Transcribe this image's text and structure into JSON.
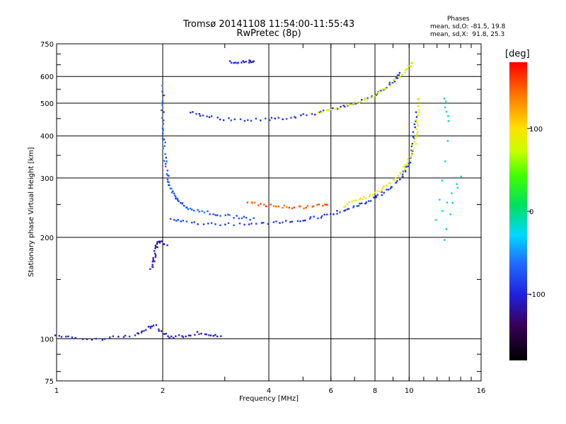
{
  "title": {
    "line1": "Tromsø 20141108 11:54:00-11:55:43",
    "line2": "RwPretec (8p)"
  },
  "phases": {
    "label": "Phases",
    "o_line": "mean, sd,O: -81.5, 19.8",
    "x_line": "mean, sd,X:  91.8, 25.3"
  },
  "colorbar": {
    "unit": "[deg]",
    "ticks": [
      {
        "value": 100,
        "label": "100"
      },
      {
        "value": 0,
        "label": "0"
      },
      {
        "value": -100,
        "label": "-100"
      }
    ],
    "range": [
      -180,
      180
    ]
  },
  "chart_data": {
    "type": "scatter",
    "title": "Tromsø 20141108 11:54:00-11:55:43",
    "subtitle": "RwPretec (8p)",
    "xlabel": "Frequency [MHz]",
    "ylabel": "Stationary phase Virtual Height [km]",
    "xscale": "log",
    "yscale": "log",
    "xlim": [
      1,
      16
    ],
    "ylim": [
      75,
      750
    ],
    "xticks": [
      1,
      2,
      4,
      6,
      8,
      10,
      16
    ],
    "xtick_labels": [
      "1",
      "2",
      "4",
      "6",
      "8",
      "10",
      "16"
    ],
    "yticks": [
      75,
      100,
      200,
      300,
      400,
      500,
      600,
      750
    ],
    "ytick_labels": [
      "75",
      "100",
      "200",
      "300",
      "400",
      "500",
      "600",
      "750"
    ],
    "grid": true,
    "color_by": "phase (deg)",
    "series": [
      {
        "points": [
          [
            2.0,
            560
          ],
          [
            2.0,
            480
          ],
          [
            2.0,
            420
          ],
          [
            2.02,
            380
          ],
          [
            2.03,
            340
          ],
          [
            2.05,
            310
          ],
          [
            2.08,
            290
          ],
          [
            2.12,
            275
          ],
          [
            2.18,
            262
          ],
          [
            2.25,
            252
          ],
          [
            2.35,
            245
          ],
          [
            2.5,
            240
          ],
          [
            2.7,
            236
          ],
          [
            3.0,
            232
          ],
          [
            3.3,
            229
          ],
          [
            3.6,
            227
          ]
        ],
        "phase": -70
      },
      {
        "points": [
          [
            2.1,
            225
          ],
          [
            2.3,
            222
          ],
          [
            2.6,
            220
          ],
          [
            3.0,
            219
          ],
          [
            3.5,
            219
          ],
          [
            4.0,
            220
          ],
          [
            4.5,
            222
          ],
          [
            5.0,
            225
          ],
          [
            5.5,
            229
          ],
          [
            6.0,
            234
          ],
          [
            6.5,
            240
          ],
          [
            7.0,
            247
          ],
          [
            7.5,
            254
          ],
          [
            8.0,
            262
          ],
          [
            8.5,
            272
          ],
          [
            9.0,
            285
          ],
          [
            9.5,
            302
          ],
          [
            9.8,
            318
          ],
          [
            10.0,
            335
          ],
          [
            10.2,
            365
          ],
          [
            10.35,
            410
          ],
          [
            10.45,
            470
          ]
        ],
        "phase": -85
      },
      {
        "points": [
          [
            6.5,
            248
          ],
          [
            7.0,
            255
          ],
          [
            7.5,
            262
          ],
          [
            8.0,
            270
          ],
          [
            8.5,
            282
          ],
          [
            9.0,
            295
          ],
          [
            9.5,
            312
          ],
          [
            9.9,
            330
          ],
          [
            10.2,
            355
          ],
          [
            10.4,
            385
          ],
          [
            10.5,
            420
          ],
          [
            10.6,
            470
          ],
          [
            10.7,
            520
          ]
        ],
        "phase": 90
      },
      {
        "points": [
          [
            3.5,
            255
          ],
          [
            3.8,
            250
          ],
          [
            4.2,
            247
          ],
          [
            4.6,
            246
          ],
          [
            5.0,
            246
          ],
          [
            5.5,
            249
          ],
          [
            5.9,
            252
          ]
        ],
        "phase": 150
      },
      {
        "points": [
          [
            2.4,
            470
          ],
          [
            2.6,
            458
          ],
          [
            2.9,
            450
          ],
          [
            3.3,
            446
          ],
          [
            3.8,
            446
          ],
          [
            4.3,
            450
          ],
          [
            4.8,
            456
          ],
          [
            5.4,
            465
          ],
          [
            6.0,
            476
          ],
          [
            6.6,
            490
          ],
          [
            7.2,
            505
          ],
          [
            7.8,
            522
          ],
          [
            8.3,
            540
          ],
          [
            8.8,
            565
          ],
          [
            9.2,
            590
          ],
          [
            9.4,
            610
          ]
        ],
        "phase": -90
      },
      {
        "points": [
          [
            5.5,
            470
          ],
          [
            6.0,
            478
          ],
          [
            6.6,
            490
          ],
          [
            7.2,
            503
          ],
          [
            7.8,
            520
          ],
          [
            8.4,
            545
          ],
          [
            9.0,
            575
          ],
          [
            9.6,
            610
          ],
          [
            10.0,
            640
          ],
          [
            10.2,
            660
          ]
        ],
        "phase": 80
      },
      {
        "points": [
          [
            1.0,
            102
          ],
          [
            1.1,
            101
          ],
          [
            1.3,
            100
          ],
          [
            1.5,
            101
          ],
          [
            1.7,
            103
          ],
          [
            1.8,
            107
          ],
          [
            1.9,
            110
          ],
          [
            2.0,
            104
          ],
          [
            2.1,
            101
          ],
          [
            2.3,
            102
          ],
          [
            2.5,
            104
          ],
          [
            2.7,
            103
          ],
          [
            2.9,
            101
          ]
        ],
        "phase": -100
      },
      {
        "points": [
          [
            1.85,
            160
          ],
          [
            1.88,
            170
          ],
          [
            1.9,
            180
          ],
          [
            1.92,
            190
          ],
          [
            1.95,
            195
          ],
          [
            2.05,
            190
          ]
        ],
        "phase": -110
      },
      {
        "points": [
          [
            3.1,
            660
          ],
          [
            3.3,
            662
          ],
          [
            3.5,
            665
          ],
          [
            3.6,
            664
          ]
        ],
        "phase": -100
      },
      {
        "points": [
          [
            12.5,
            520
          ],
          [
            13.0,
            445
          ],
          [
            12.0,
            225
          ],
          [
            14.0,
            305
          ],
          [
            12.5,
            195
          ]
        ],
        "phase": -20
      }
    ]
  }
}
